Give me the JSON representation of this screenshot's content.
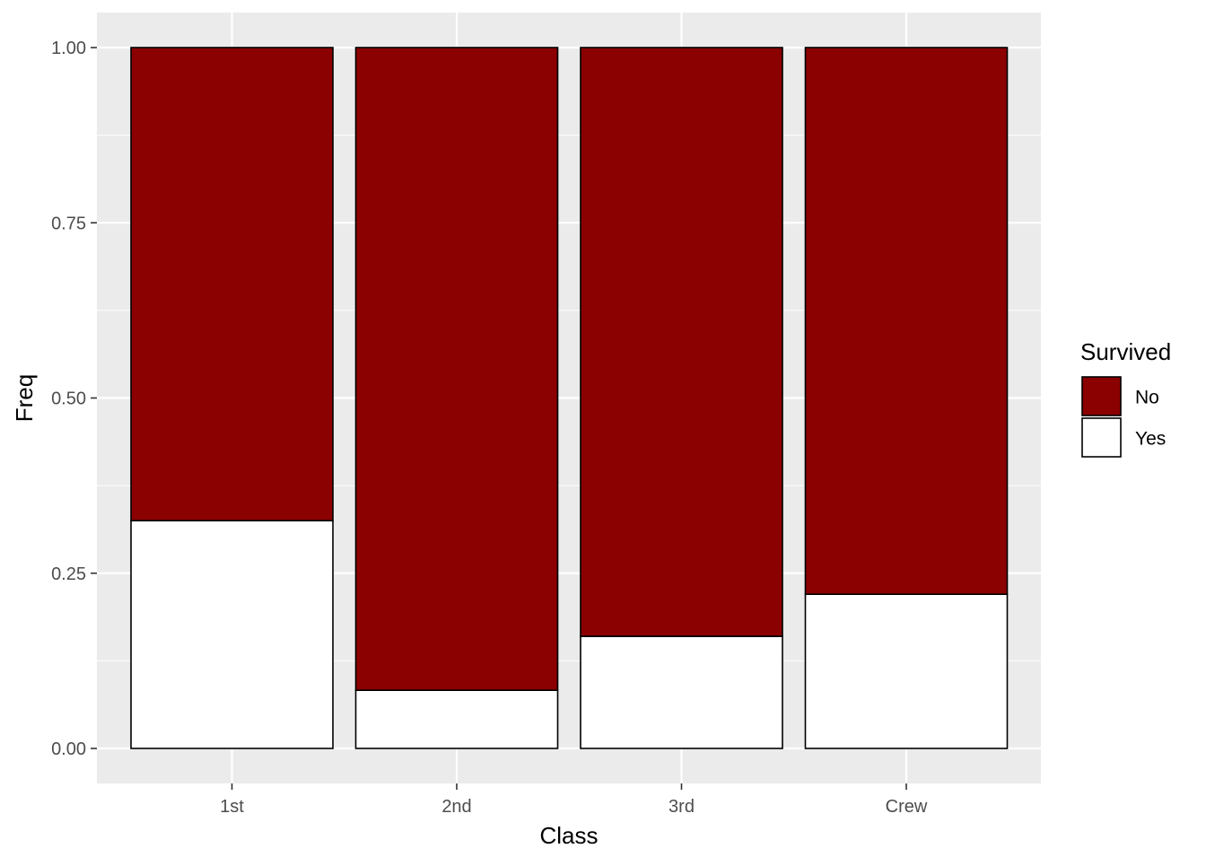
{
  "chart_data": {
    "type": "bar",
    "stacked": true,
    "xlabel": "Class",
    "ylabel": "Freq",
    "categories": [
      "1st",
      "2nd",
      "3rd",
      "Crew"
    ],
    "ylim": [
      0,
      1
    ],
    "y_ticks": [
      0,
      0.25,
      0.5,
      0.75,
      1
    ],
    "y_tick_labels": [
      "0.00",
      "0.25",
      "0.50",
      "0.75",
      "1.00"
    ],
    "grid": true,
    "legend": {
      "title": "Survived",
      "position": "right"
    },
    "series": [
      {
        "name": "Yes",
        "values": [
          0.325,
          0.083,
          0.16,
          0.22
        ],
        "color": "#ffffff"
      },
      {
        "name": "No",
        "values": [
          0.675,
          0.917,
          0.84,
          0.78
        ],
        "color": "#8b0000"
      }
    ],
    "legend_order": [
      "No",
      "Yes"
    ],
    "panel_background": "#ebebeb",
    "grid_color": "#ffffff",
    "bar_outline": "#000000"
  }
}
